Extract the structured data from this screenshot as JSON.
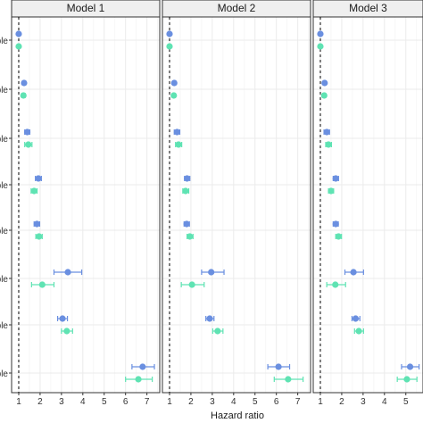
{
  "colors": {
    "series_a": "#6a8fe0",
    "series_b": "#5fe3b3",
    "strip_fill": "#efefef",
    "panel_border": "#333333",
    "grid": "#ebebeb",
    "reference_line": "#000000"
  },
  "chart_data": {
    "type": "scatter",
    "subtype": "forest-plot-with-error-bars",
    "xlabel": "Hazard ratio",
    "xlim": [
      0.75,
      7.6
    ],
    "x_ticks": [
      "1",
      "2",
      "3",
      "4",
      "5",
      "6",
      "7"
    ],
    "reference_x": 1,
    "grid": true,
    "legend": "none",
    "row_tick_labels": [
      "ble",
      "ble",
      "ble",
      "ble",
      "ble",
      "ble",
      "ble",
      "ble"
    ],
    "panels": [
      {
        "title": "Model 1",
        "series": [
          {
            "values": [
              {
                "hr": 1.0,
                "lo": 1.0,
                "hi": 1.0
              },
              {
                "hr": 1.25,
                "lo": 1.18,
                "hi": 1.32
              },
              {
                "hr": 1.4,
                "lo": 1.28,
                "hi": 1.52
              },
              {
                "hr": 1.92,
                "lo": 1.78,
                "hi": 2.06
              },
              {
                "hr": 1.85,
                "lo": 1.72,
                "hi": 1.98
              },
              {
                "hr": 3.3,
                "lo": 2.65,
                "hi": 3.95
              },
              {
                "hr": 3.05,
                "lo": 2.82,
                "hi": 3.28
              },
              {
                "hr": 6.8,
                "lo": 6.3,
                "hi": 7.35
              }
            ]
          },
          {
            "values": [
              {
                "hr": 1.0,
                "lo": 1.0,
                "hi": 1.0
              },
              {
                "hr": 1.22,
                "lo": 1.14,
                "hi": 1.3
              },
              {
                "hr": 1.45,
                "lo": 1.28,
                "hi": 1.62
              },
              {
                "hr": 1.72,
                "lo": 1.58,
                "hi": 1.86
              },
              {
                "hr": 1.95,
                "lo": 1.8,
                "hi": 2.1
              },
              {
                "hr": 2.1,
                "lo": 1.6,
                "hi": 2.65
              },
              {
                "hr": 3.25,
                "lo": 3.0,
                "hi": 3.52
              },
              {
                "hr": 6.6,
                "lo": 6.0,
                "hi": 7.25
              }
            ]
          }
        ]
      },
      {
        "title": "Model 2",
        "series": [
          {
            "values": [
              {
                "hr": 1.0,
                "lo": 1.0,
                "hi": 1.0
              },
              {
                "hr": 1.22,
                "lo": 1.15,
                "hi": 1.29
              },
              {
                "hr": 1.35,
                "lo": 1.22,
                "hi": 1.48
              },
              {
                "hr": 1.82,
                "lo": 1.7,
                "hi": 1.95
              },
              {
                "hr": 1.8,
                "lo": 1.68,
                "hi": 1.93
              },
              {
                "hr": 2.95,
                "lo": 2.5,
                "hi": 3.55
              },
              {
                "hr": 2.88,
                "lo": 2.7,
                "hi": 3.08
              },
              {
                "hr": 6.1,
                "lo": 5.6,
                "hi": 6.62
              }
            ]
          },
          {
            "values": [
              {
                "hr": 1.0,
                "lo": 1.0,
                "hi": 1.0
              },
              {
                "hr": 1.2,
                "lo": 1.13,
                "hi": 1.27
              },
              {
                "hr": 1.42,
                "lo": 1.28,
                "hi": 1.57
              },
              {
                "hr": 1.75,
                "lo": 1.62,
                "hi": 1.9
              },
              {
                "hr": 1.95,
                "lo": 1.82,
                "hi": 2.1
              },
              {
                "hr": 2.05,
                "lo": 1.55,
                "hi": 2.62
              },
              {
                "hr": 3.25,
                "lo": 3.02,
                "hi": 3.5
              },
              {
                "hr": 6.55,
                "lo": 5.9,
                "hi": 7.25
              }
            ]
          }
        ]
      },
      {
        "title": "Model 3",
        "series": [
          {
            "values": [
              {
                "hr": 1.0,
                "lo": 1.0,
                "hi": 1.0
              },
              {
                "hr": 1.2,
                "lo": 1.13,
                "hi": 1.27
              },
              {
                "hr": 1.3,
                "lo": 1.17,
                "hi": 1.43
              },
              {
                "hr": 1.72,
                "lo": 1.6,
                "hi": 1.85
              },
              {
                "hr": 1.72,
                "lo": 1.6,
                "hi": 1.84
              },
              {
                "hr": 2.55,
                "lo": 2.15,
                "hi": 3.02
              },
              {
                "hr": 2.65,
                "lo": 2.48,
                "hi": 2.85
              },
              {
                "hr": 5.2,
                "lo": 4.8,
                "hi": 5.62
              }
            ]
          },
          {
            "values": [
              {
                "hr": 1.0,
                "lo": 1.0,
                "hi": 1.0
              },
              {
                "hr": 1.18,
                "lo": 1.11,
                "hi": 1.25
              },
              {
                "hr": 1.38,
                "lo": 1.25,
                "hi": 1.52
              },
              {
                "hr": 1.5,
                "lo": 1.38,
                "hi": 1.62
              },
              {
                "hr": 1.85,
                "lo": 1.72,
                "hi": 1.99
              },
              {
                "hr": 1.7,
                "lo": 1.3,
                "hi": 2.18
              },
              {
                "hr": 2.8,
                "lo": 2.6,
                "hi": 3.02
              },
              {
                "hr": 5.05,
                "lo": 4.6,
                "hi": 5.52
              }
            ]
          }
        ]
      }
    ]
  }
}
